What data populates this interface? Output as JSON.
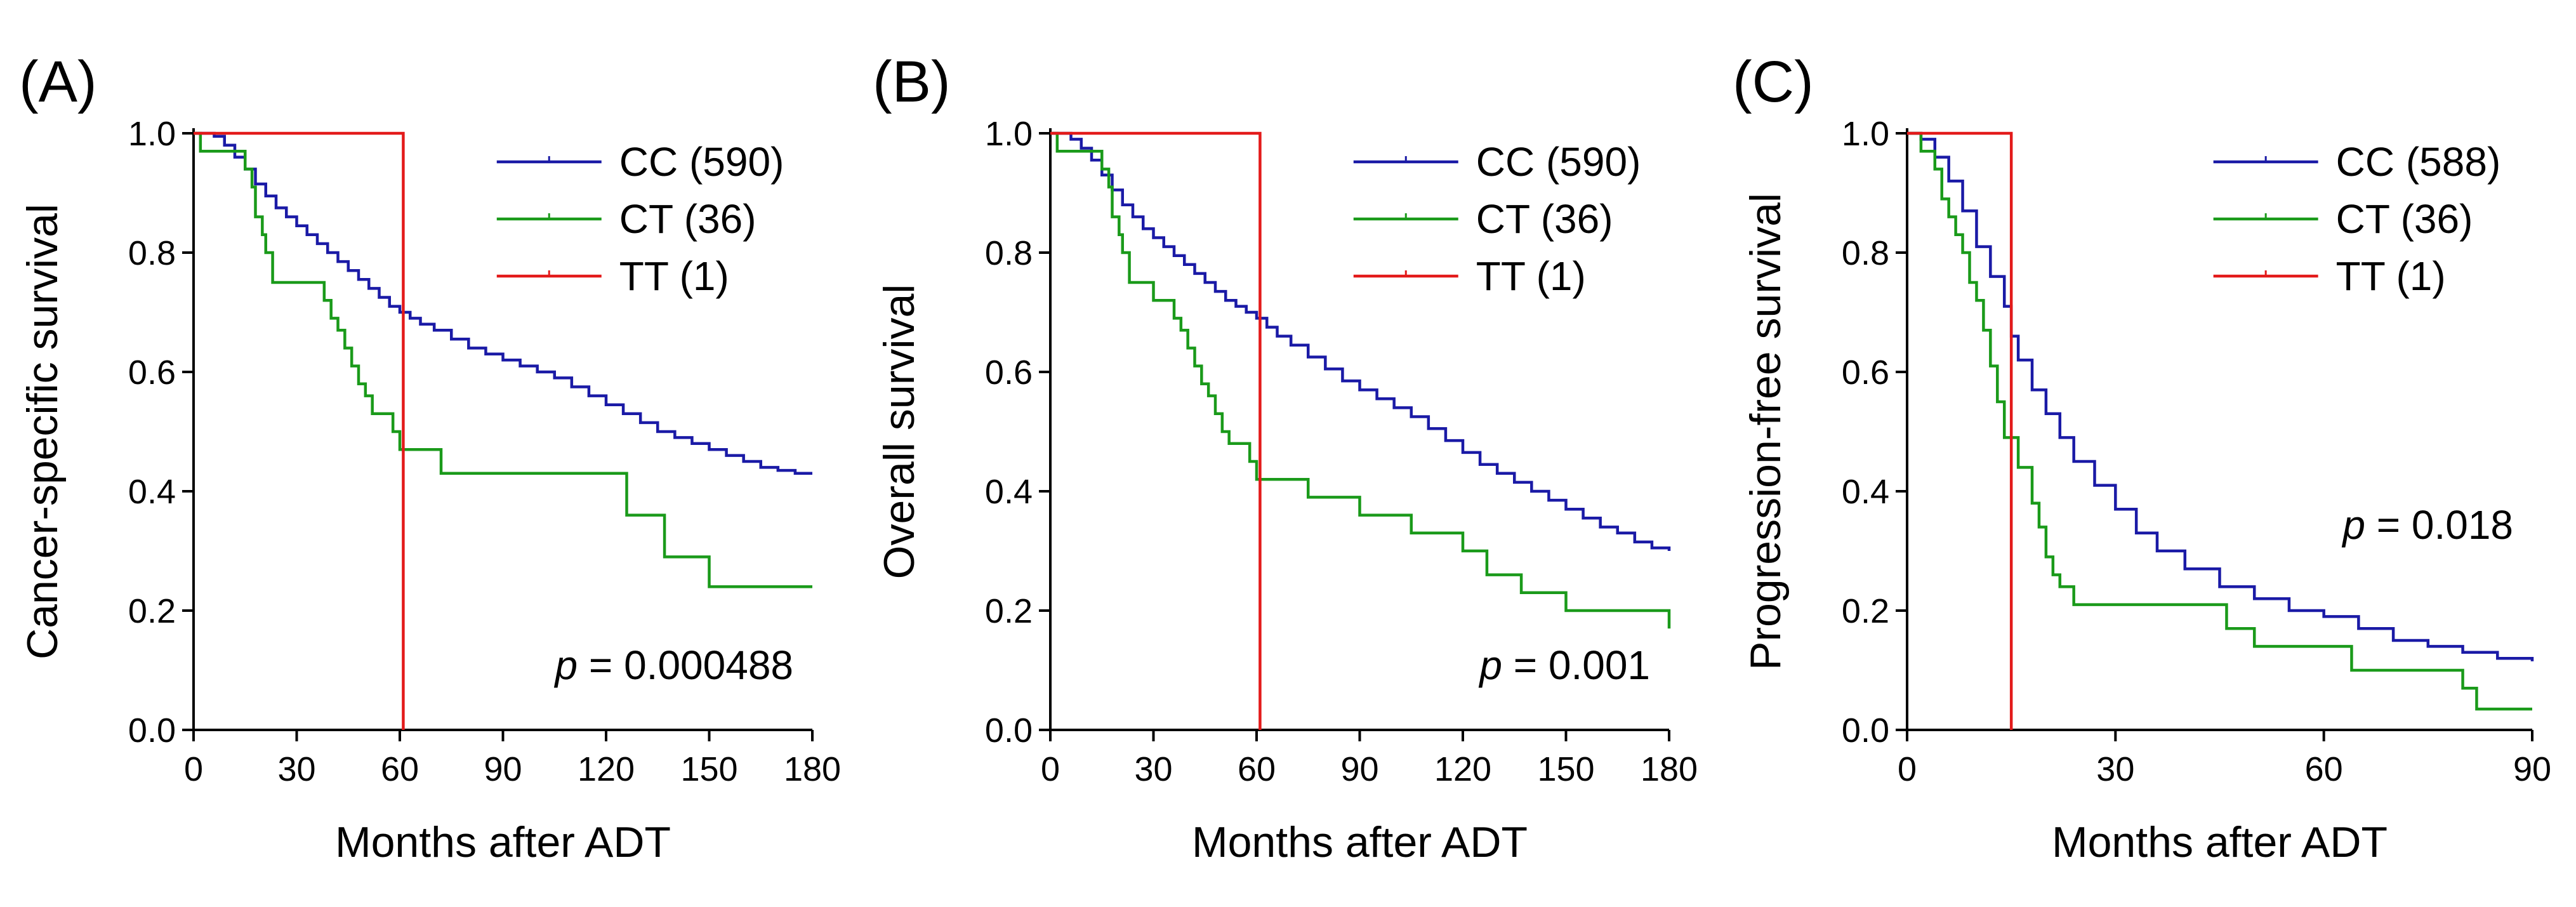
{
  "chart_data": [
    {
      "panel": "(A)",
      "type": "line",
      "subtype": "kaplan-meier",
      "title": "",
      "xlabel": "Months after ADT",
      "ylabel": "Cancer-specific survival",
      "xlim": [
        0,
        180
      ],
      "ylim": [
        0,
        1.0
      ],
      "xticks": [
        "0",
        "30",
        "60",
        "90",
        "120",
        "150",
        "180"
      ],
      "yticks": [
        "0.0",
        "0.2",
        "0.4",
        "0.6",
        "0.8",
        "1.0"
      ],
      "legend_position": "top-right",
      "annotation": {
        "p_symbol": "p",
        "p_text": " = 0.000488",
        "position": "bottom-right"
      },
      "series": [
        {
          "name": "CC (590)",
          "color": "#1a1aa6",
          "x": [
            0,
            3,
            6,
            9,
            12,
            15,
            18,
            21,
            24,
            27,
            30,
            33,
            36,
            39,
            42,
            45,
            48,
            51,
            54,
            57,
            60,
            63,
            66,
            70,
            75,
            80,
            85,
            90,
            95,
            100,
            105,
            110,
            115,
            120,
            125,
            130,
            135,
            140,
            145,
            150,
            155,
            160,
            165,
            170,
            175,
            180
          ],
          "y": [
            1.0,
            1.0,
            0.995,
            0.98,
            0.96,
            0.94,
            0.915,
            0.895,
            0.875,
            0.86,
            0.845,
            0.83,
            0.815,
            0.8,
            0.785,
            0.77,
            0.755,
            0.74,
            0.725,
            0.71,
            0.7,
            0.69,
            0.68,
            0.67,
            0.655,
            0.64,
            0.63,
            0.62,
            0.61,
            0.6,
            0.59,
            0.575,
            0.56,
            0.545,
            0.53,
            0.515,
            0.5,
            0.49,
            0.48,
            0.47,
            0.46,
            0.45,
            0.44,
            0.435,
            0.43,
            0.43
          ]
        },
        {
          "name": "CT (36)",
          "color": "#1a9a1a",
          "x": [
            0,
            2,
            12,
            15,
            17,
            18,
            20,
            21,
            23,
            30,
            38,
            40,
            42,
            44,
            46,
            48,
            50,
            52,
            55,
            58,
            60,
            72,
            90,
            122,
            126,
            137,
            150,
            180
          ],
          "y": [
            1.0,
            0.97,
            0.97,
            0.94,
            0.91,
            0.86,
            0.83,
            0.8,
            0.75,
            0.75,
            0.72,
            0.69,
            0.67,
            0.64,
            0.61,
            0.58,
            0.56,
            0.53,
            0.53,
            0.5,
            0.47,
            0.43,
            0.43,
            0.43,
            0.36,
            0.29,
            0.24,
            0.24
          ]
        },
        {
          "name": "TT (1)",
          "color": "#e31a1a",
          "x": [
            0,
            61,
            61
          ],
          "y": [
            1.0,
            1.0,
            0.0
          ]
        }
      ]
    },
    {
      "panel": "(B)",
      "type": "line",
      "subtype": "kaplan-meier",
      "title": "",
      "xlabel": "Months after ADT",
      "ylabel": "Overall survival",
      "xlim": [
        0,
        180
      ],
      "ylim": [
        0,
        1.0
      ],
      "xticks": [
        "0",
        "30",
        "60",
        "90",
        "120",
        "150",
        "180"
      ],
      "yticks": [
        "0.0",
        "0.2",
        "0.4",
        "0.6",
        "0.8",
        "1.0"
      ],
      "legend_position": "top-right",
      "annotation": {
        "p_symbol": "p",
        "p_text": " = 0.001",
        "position": "bottom-right"
      },
      "series": [
        {
          "name": "CC (590)",
          "color": "#1a1aa6",
          "x": [
            0,
            3,
            6,
            9,
            12,
            15,
            18,
            21,
            24,
            27,
            30,
            33,
            36,
            39,
            42,
            45,
            48,
            51,
            54,
            57,
            60,
            63,
            66,
            70,
            75,
            80,
            85,
            90,
            95,
            100,
            105,
            110,
            115,
            120,
            125,
            130,
            135,
            140,
            145,
            150,
            155,
            160,
            165,
            170,
            175,
            180
          ],
          "y": [
            1.0,
            1.0,
            0.99,
            0.975,
            0.955,
            0.93,
            0.905,
            0.88,
            0.86,
            0.84,
            0.825,
            0.81,
            0.795,
            0.78,
            0.765,
            0.75,
            0.735,
            0.72,
            0.71,
            0.7,
            0.69,
            0.675,
            0.66,
            0.645,
            0.625,
            0.605,
            0.585,
            0.57,
            0.555,
            0.54,
            0.525,
            0.505,
            0.485,
            0.465,
            0.445,
            0.43,
            0.415,
            0.4,
            0.385,
            0.37,
            0.355,
            0.34,
            0.33,
            0.315,
            0.305,
            0.3
          ]
        },
        {
          "name": "CT (36)",
          "color": "#1a9a1a",
          "x": [
            0,
            2,
            12,
            15,
            17,
            18,
            20,
            21,
            23,
            30,
            36,
            38,
            40,
            42,
            44,
            46,
            48,
            50,
            52,
            58,
            60,
            75,
            90,
            105,
            120,
            127,
            137,
            150,
            180
          ],
          "y": [
            1.0,
            0.97,
            0.97,
            0.94,
            0.91,
            0.86,
            0.83,
            0.8,
            0.75,
            0.72,
            0.69,
            0.67,
            0.64,
            0.61,
            0.58,
            0.56,
            0.53,
            0.5,
            0.48,
            0.45,
            0.42,
            0.39,
            0.36,
            0.33,
            0.3,
            0.26,
            0.23,
            0.2,
            0.17
          ]
        },
        {
          "name": "TT (1)",
          "color": "#e31a1a",
          "x": [
            0,
            61,
            61
          ],
          "y": [
            1.0,
            1.0,
            0.0
          ]
        }
      ]
    },
    {
      "panel": "(C)",
      "type": "line",
      "subtype": "kaplan-meier",
      "title": "",
      "xlabel": "Months after ADT",
      "ylabel": "Progression-free survival",
      "xlim": [
        0,
        90
      ],
      "ylim": [
        0,
        1.0
      ],
      "xticks": [
        "0",
        "30",
        "60",
        "90"
      ],
      "yticks": [
        "0.0",
        "0.2",
        "0.4",
        "0.6",
        "0.8",
        "1.0"
      ],
      "legend_position": "top-right",
      "annotation": {
        "p_symbol": "p",
        "p_text": " = 0.018",
        "position": "middle-right"
      },
      "series": [
        {
          "name": "CC (588)",
          "color": "#1a1aa6",
          "x": [
            0,
            2,
            4,
            6,
            8,
            10,
            12,
            14,
            15,
            16,
            18,
            20,
            22,
            24,
            27,
            30,
            33,
            36,
            40,
            45,
            50,
            55,
            60,
            65,
            70,
            75,
            80,
            85,
            90
          ],
          "y": [
            1.0,
            0.99,
            0.96,
            0.92,
            0.87,
            0.81,
            0.76,
            0.71,
            0.66,
            0.62,
            0.57,
            0.53,
            0.49,
            0.45,
            0.41,
            0.37,
            0.33,
            0.3,
            0.27,
            0.24,
            0.22,
            0.2,
            0.19,
            0.17,
            0.15,
            0.14,
            0.13,
            0.12,
            0.115
          ]
        },
        {
          "name": "CT (36)",
          "color": "#1a9a1a",
          "x": [
            0,
            2,
            4,
            5,
            6,
            7,
            8,
            9,
            10,
            11,
            12,
            13,
            14,
            16,
            18,
            19,
            20,
            21,
            22,
            24,
            30,
            46,
            50,
            56,
            64,
            80,
            82,
            90
          ],
          "y": [
            1.0,
            0.97,
            0.94,
            0.89,
            0.86,
            0.83,
            0.8,
            0.75,
            0.72,
            0.67,
            0.61,
            0.55,
            0.49,
            0.44,
            0.38,
            0.34,
            0.29,
            0.26,
            0.24,
            0.21,
            0.21,
            0.17,
            0.14,
            0.14,
            0.1,
            0.07,
            0.035,
            0.035
          ]
        },
        {
          "name": "TT (1)",
          "color": "#e31a1a",
          "x": [
            0,
            15,
            15
          ],
          "y": [
            1.0,
            1.0,
            0.0
          ]
        }
      ]
    }
  ]
}
